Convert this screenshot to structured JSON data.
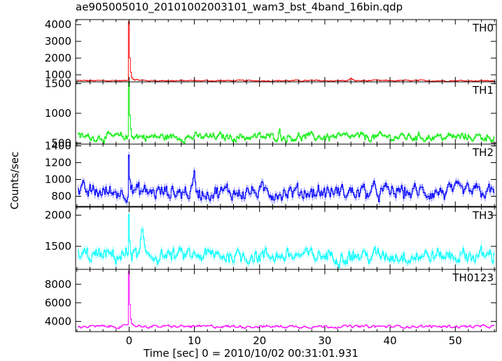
{
  "title": "ae905005010_20101002003101_wam3_bst_4band_16bin.qdp",
  "xlabel": "Time [sec] 0 = 2010/10/02 00:31:01.931",
  "ylabel": "Counts/sec",
  "chart_data": {
    "type": "line",
    "title": "ae905005010_20101002003101_wam3_bst_4band_16bin.qdp",
    "xlabel": "Time [sec] 0 = 2010/10/02 00:31:01.931",
    "ylabel": "Counts/sec",
    "xlim": [
      -8.2,
      56.3
    ],
    "x_ticks": [
      0,
      10,
      20,
      30,
      40,
      50
    ],
    "x_tick_labels": [
      "0",
      "10",
      "20",
      "30",
      "40",
      "50"
    ],
    "grid": false,
    "panels": [
      {
        "name": "TH0",
        "color": "#ff0000",
        "ylim": [
          580,
          4300
        ],
        "y_ticks": [
          1000,
          2000,
          3000,
          4000
        ],
        "y_tick_labels": [
          "1000",
          "2000",
          "3000",
          "4000"
        ],
        "baseline": 650,
        "noise": 25,
        "peak": {
          "t": 0.0,
          "value": 4200
        },
        "events": [
          {
            "t": 34.0,
            "value": 800
          }
        ]
      },
      {
        "name": "TH1",
        "color": "#00ee00",
        "ylim": [
          480,
          1530
        ],
        "y_ticks": [
          500,
          1000,
          1500
        ],
        "y_tick_labels": [
          "500",
          "1000",
          "1500"
        ],
        "baseline": 600,
        "noise": 40,
        "peak": {
          "t": 0.0,
          "value": 1500
        },
        "events": [
          {
            "t": 23.0,
            "value": 700
          }
        ]
      },
      {
        "name": "TH2",
        "color": "#0000ff",
        "ylim": [
          680,
          1420
        ],
        "y_ticks": [
          800,
          1000,
          1200,
          1400
        ],
        "y_tick_labels": [
          "800",
          "1000",
          "1200",
          "1400"
        ],
        "baseline": 850,
        "noise": 55,
        "peak": {
          "t": 0.0,
          "value": 1400
        },
        "events": [
          {
            "t": 10.0,
            "value": 1030
          }
        ]
      },
      {
        "name": "TH3",
        "color": "#00ffff",
        "ylim": [
          1130,
          2130
        ],
        "y_ticks": [
          1500,
          2000
        ],
        "y_tick_labels": [
          "1500",
          "2000"
        ],
        "baseline": 1350,
        "noise": 70,
        "peak": {
          "t": 0.0,
          "value": 2020
        },
        "events": [
          {
            "t": 2.0,
            "value": 1720
          }
        ]
      },
      {
        "name": "TH0123",
        "color": "#ff00ff",
        "ylim": [
          2900,
          9600
        ],
        "y_ticks": [
          4000,
          6000,
          8000
        ],
        "y_tick_labels": [
          "4000",
          "6000",
          "8000"
        ],
        "baseline": 3450,
        "noise": 90,
        "peak": {
          "t": 0.0,
          "value": 9400
        },
        "events": []
      }
    ]
  }
}
